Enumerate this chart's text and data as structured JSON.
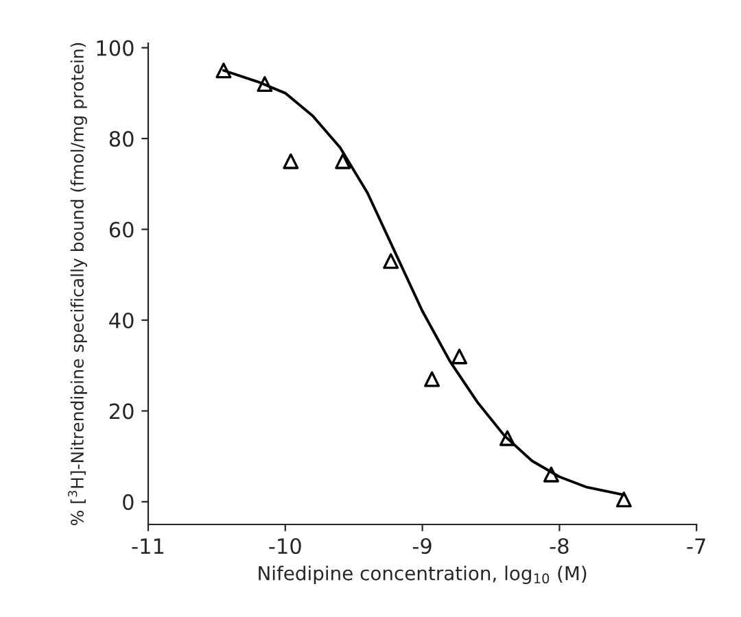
{
  "chart_data": {
    "type": "scatter",
    "xlabel": "Nifedipine concentration, log$_{10}$ (M)",
    "ylabel": "% [$^{3}$H]-Nitrendipine specifically bound (fmol/mg protein)",
    "series": [
      {
        "color": "#000000",
        "marker": "triangle",
        "x": [
          -10.45,
          -10.15,
          -9.96,
          -9.58,
          -9.23,
          -8.93,
          -8.73,
          -8.38,
          -8.06,
          -7.53
        ],
        "values": [
          95,
          92,
          75,
          75,
          53,
          27,
          32,
          14,
          6,
          0.5
        ]
      },
      {
        "type": "line",
        "color": "#000000",
        "marker": "none",
        "line_style": "solid",
        "x": [
          -10.45,
          -10.2,
          -10.0,
          -9.8,
          -9.6,
          -9.4,
          -9.2,
          -9.0,
          -8.8,
          -8.6,
          -8.4,
          -8.2,
          -8.0,
          -7.8,
          -7.53
        ],
        "values": [
          95,
          92.5,
          90,
          85,
          78,
          68,
          55,
          42,
          31,
          22,
          14.5,
          9,
          5.5,
          3.2,
          1.5
        ]
      }
    ],
    "xlim": [
      -11,
      -7
    ],
    "xticks": [
      -11,
      -10,
      -9,
      -8,
      -7
    ],
    "ylim": [
      -5,
      101
    ],
    "yticks": [
      0,
      20,
      40,
      60,
      80,
      100
    ]
  }
}
